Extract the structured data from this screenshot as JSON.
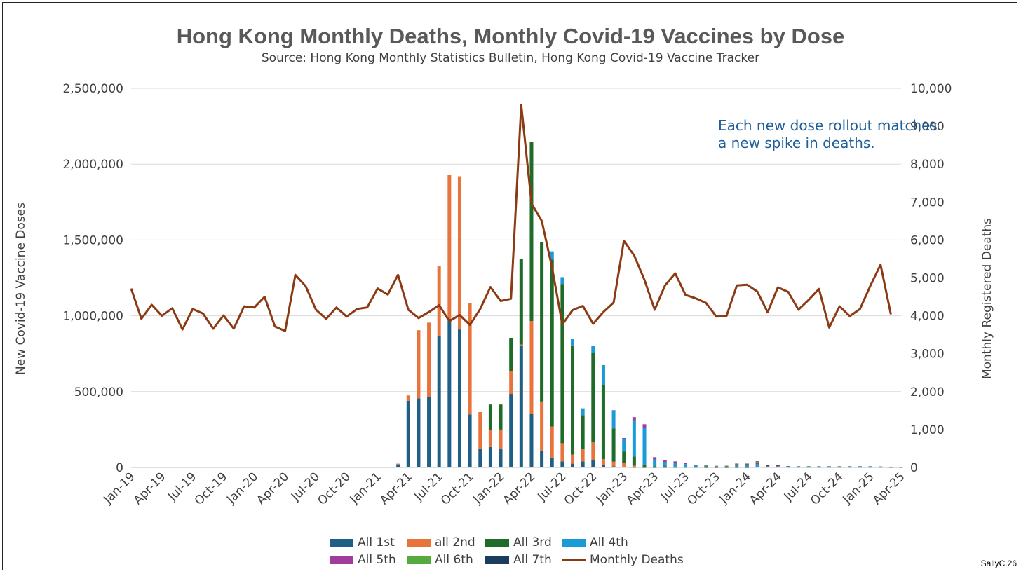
{
  "title": "Hong Kong Monthly Deaths, Monthly Covid-19 Vaccines by Dose",
  "subtitle": "Source: Hong Kong Monthly Statistics Bulletin, Hong Kong Covid-19 Vaccine Tracker",
  "annotation": [
    "Each new dose rollout matches",
    "a new spike in deaths."
  ],
  "credit": "SallyC.26",
  "colors": {
    "dose1": "#1f5f85",
    "dose2": "#e8743b",
    "dose3": "#1e6b2a",
    "dose4": "#1a9bd7",
    "dose5": "#a03c9a",
    "dose6": "#55ac3e",
    "dose7": "#1b3c5e",
    "deaths": "#8b3a14",
    "grid": "#d9d9d9",
    "text": "#404040"
  },
  "chart_data": {
    "type": "bar+line",
    "title": "Hong Kong Monthly Deaths, Monthly Covid-19 Vaccines by Dose",
    "ylabel_left": "New Covid-19 Vaccine Doses",
    "ylabel_right": "Monthly Registered Deaths",
    "ylim_left": [
      0,
      2500000
    ],
    "ylim_right": [
      0,
      10000
    ],
    "yticks_left": [
      "0",
      "500,000",
      "1,000,000",
      "1,500,000",
      "2,000,000",
      "2,500,000"
    ],
    "yticks_right": [
      "0",
      "1,000",
      "2,000",
      "3,000",
      "4,000",
      "5,000",
      "6,000",
      "7,000",
      "8,000",
      "9,000",
      "10,000"
    ],
    "xtick_labels": [
      "Jan-19",
      "Apr-19",
      "Jul-19",
      "Oct-19",
      "Jan-20",
      "Apr-20",
      "Jul-20",
      "Oct-20",
      "Jan-21",
      "Apr-21",
      "Jul-21",
      "Oct-21",
      "Jan-22",
      "Apr-22",
      "Jul-22",
      "Oct-22",
      "Jan-23",
      "Apr-23",
      "Jul-23",
      "Oct-23",
      "Jan-24",
      "Apr-24",
      "Jul-24",
      "Oct-24",
      "Jan-25",
      "Apr-25"
    ],
    "months_start": "Jan-19",
    "month_count": 76,
    "legend": [
      "All 1st",
      "all 2nd",
      "All 3rd",
      "All 4th",
      "All 5th",
      "All 6th",
      "All 7th",
      "Monthly Deaths"
    ],
    "deaths": [
      4720,
      3920,
      4290,
      4000,
      4200,
      3640,
      4180,
      4060,
      3660,
      4010,
      3660,
      4250,
      4220,
      4500,
      3720,
      3600,
      5080,
      4780,
      4160,
      3920,
      4220,
      3980,
      4180,
      4220,
      4720,
      4560,
      5080,
      4160,
      3940,
      4100,
      4280,
      3860,
      4020,
      3760,
      4180,
      4760,
      4390,
      4450,
      9560,
      6960,
      6500,
      5280,
      3770,
      4150,
      4260,
      3790,
      4100,
      4350,
      5980,
      5590,
      4950,
      4160,
      4800,
      5120,
      4550,
      4460,
      4340,
      3980,
      4000,
      4800,
      4820,
      4640,
      4090,
      4750,
      4630,
      4160,
      4420,
      4710,
      3690,
      4250,
      3990,
      4180,
      4790,
      5350,
      4040
    ],
    "series": [
      {
        "name": "All 1st",
        "values": [
          0,
          0,
          0,
          0,
          0,
          0,
          0,
          0,
          0,
          0,
          0,
          0,
          0,
          0,
          0,
          0,
          0,
          0,
          0,
          0,
          0,
          0,
          0,
          0,
          0,
          0,
          20000,
          440000,
          455000,
          465000,
          870000,
          980000,
          910000,
          350000,
          125000,
          135000,
          120000,
          485000,
          800000,
          355000,
          110000,
          65000,
          40000,
          25000,
          40000,
          50000,
          15000,
          8000,
          4000,
          2000,
          1000,
          1000,
          1000,
          1000,
          0,
          0,
          0,
          0,
          0,
          0,
          0,
          0,
          0,
          0,
          0,
          0,
          0,
          0,
          0,
          0,
          0,
          0,
          0,
          0,
          0,
          0
        ]
      },
      {
        "name": "all 2nd",
        "values": [
          0,
          0,
          0,
          0,
          0,
          0,
          0,
          0,
          0,
          0,
          0,
          0,
          0,
          0,
          0,
          0,
          0,
          0,
          0,
          0,
          0,
          0,
          0,
          0,
          0,
          0,
          5000,
          35000,
          450000,
          490000,
          460000,
          950000,
          1010000,
          735000,
          240000,
          110000,
          130000,
          150000,
          10000,
          610000,
          325000,
          205000,
          120000,
          60000,
          80000,
          115000,
          40000,
          30000,
          25000,
          10000,
          4000,
          2000,
          1000,
          1000,
          0,
          0,
          0,
          0,
          0,
          0,
          0,
          0,
          0,
          0,
          0,
          0,
          0,
          0,
          0,
          0,
          0,
          0,
          0,
          0,
          0,
          0
        ]
      },
      {
        "name": "All 3rd",
        "values": [
          0,
          0,
          0,
          0,
          0,
          0,
          0,
          0,
          0,
          0,
          0,
          0,
          0,
          0,
          0,
          0,
          0,
          0,
          0,
          0,
          0,
          0,
          0,
          0,
          0,
          0,
          0,
          0,
          0,
          0,
          0,
          0,
          0,
          0,
          0,
          170000,
          165000,
          220000,
          565000,
          1180000,
          1050000,
          1100000,
          1050000,
          720000,
          225000,
          590000,
          490000,
          220000,
          75000,
          60000,
          15000,
          5000,
          5000,
          3000,
          2000,
          2000,
          1000,
          1000,
          1000,
          1000,
          1000,
          0,
          0,
          0,
          0,
          0,
          0,
          0,
          0,
          0,
          0,
          0,
          0,
          0,
          0,
          0
        ]
      },
      {
        "name": "All 4th",
        "values": [
          0,
          0,
          0,
          0,
          0,
          0,
          0,
          0,
          0,
          0,
          0,
          0,
          0,
          0,
          0,
          0,
          0,
          0,
          0,
          0,
          0,
          0,
          0,
          0,
          0,
          0,
          0,
          0,
          0,
          0,
          0,
          0,
          0,
          0,
          0,
          0,
          0,
          0,
          0,
          0,
          0,
          55000,
          45000,
          45000,
          45000,
          45000,
          130000,
          120000,
          85000,
          240000,
          240000,
          45000,
          30000,
          25000,
          20000,
          10000,
          6000,
          4000,
          4000,
          10000,
          10000,
          20000,
          5000,
          5000,
          3000,
          2000,
          2000,
          2000,
          2000,
          2000,
          2000,
          2000,
          2000,
          2000,
          1000,
          1000
        ]
      },
      {
        "name": "All 5th",
        "values": [
          0,
          0,
          0,
          0,
          0,
          0,
          0,
          0,
          0,
          0,
          0,
          0,
          0,
          0,
          0,
          0,
          0,
          0,
          0,
          0,
          0,
          0,
          0,
          0,
          0,
          0,
          0,
          0,
          0,
          0,
          0,
          0,
          0,
          0,
          0,
          0,
          0,
          0,
          0,
          0,
          0,
          0,
          0,
          0,
          0,
          0,
          0,
          0,
          5000,
          20000,
          25000,
          15000,
          10000,
          10000,
          8000,
          5000,
          5000,
          4000,
          4000,
          8000,
          8000,
          10000,
          5000,
          4000,
          2000,
          2000,
          2000,
          2000,
          2000,
          2000,
          2000,
          2000,
          2000,
          2000,
          1000,
          1000
        ]
      },
      {
        "name": "All 6th",
        "values": [
          0,
          0,
          0,
          0,
          0,
          0,
          0,
          0,
          0,
          0,
          0,
          0,
          0,
          0,
          0,
          0,
          0,
          0,
          0,
          0,
          0,
          0,
          0,
          0,
          0,
          0,
          0,
          0,
          0,
          0,
          0,
          0,
          0,
          0,
          0,
          0,
          0,
          0,
          0,
          0,
          0,
          0,
          0,
          0,
          0,
          0,
          0,
          0,
          0,
          0,
          0,
          0,
          0,
          0,
          0,
          0,
          2000,
          2000,
          3000,
          5000,
          5000,
          8000,
          3000,
          3000,
          2000,
          2000,
          2000,
          2000,
          2000,
          2000,
          2000,
          2000,
          2000,
          1000,
          1000,
          1000
        ]
      },
      {
        "name": "All 7th",
        "values": [
          0,
          0,
          0,
          0,
          0,
          0,
          0,
          0,
          0,
          0,
          0,
          0,
          0,
          0,
          0,
          0,
          0,
          0,
          0,
          0,
          0,
          0,
          0,
          0,
          0,
          0,
          0,
          0,
          0,
          0,
          0,
          0,
          0,
          0,
          0,
          0,
          0,
          0,
          0,
          0,
          0,
          0,
          0,
          0,
          0,
          0,
          0,
          0,
          0,
          0,
          0,
          0,
          0,
          0,
          0,
          0,
          0,
          0,
          0,
          1000,
          1000,
          2000,
          1000,
          1000,
          1000,
          1000,
          1000,
          1000,
          1000,
          1000,
          1000,
          1000,
          1000,
          1000,
          1000,
          1000
        ]
      }
    ]
  }
}
